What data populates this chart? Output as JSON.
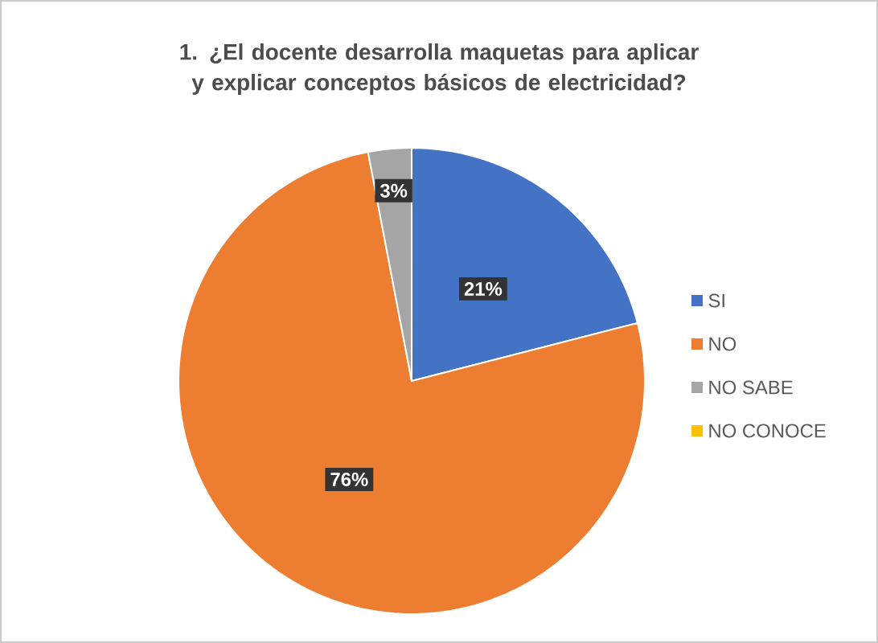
{
  "chart_data": {
    "type": "pie",
    "title": "1. ¿El docente desarrolla maquetas  para aplicar y explicar conceptos básicos de electricidad?",
    "categories": [
      "SI",
      "NO",
      "NO SABE",
      "NO CONOCE"
    ],
    "values": [
      21,
      76,
      3,
      0
    ],
    "colors": [
      "#4472c4",
      "#ed7d31",
      "#a5a5a5",
      "#ffc000"
    ],
    "value_labels": [
      "21%",
      "76%",
      "3%",
      null
    ],
    "legend": "right"
  }
}
